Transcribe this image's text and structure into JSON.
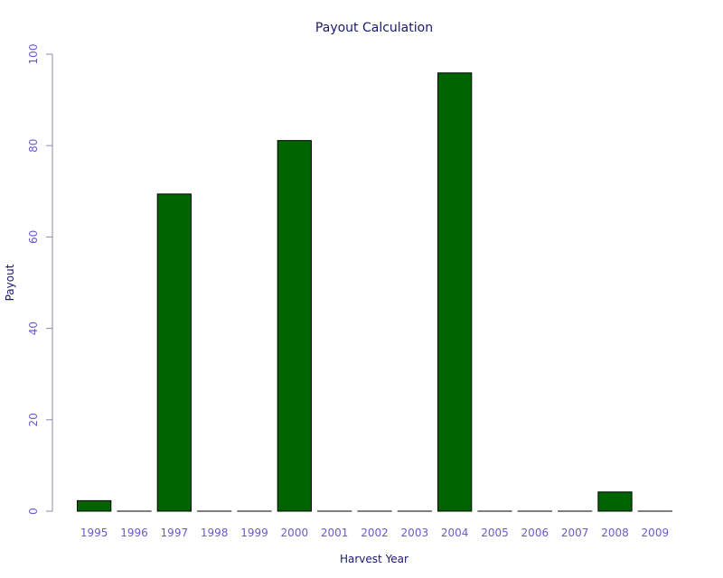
{
  "chart_data": {
    "type": "bar",
    "title": "Payout Calculation",
    "xlabel": "Harvest Year",
    "ylabel": "Payout",
    "categories": [
      "1995",
      "1996",
      "1997",
      "1998",
      "1999",
      "2000",
      "2001",
      "2002",
      "2003",
      "2004",
      "2005",
      "2006",
      "2007",
      "2008",
      "2009"
    ],
    "values": [
      2.3,
      0,
      69.4,
      0,
      0,
      81.1,
      0,
      0,
      0,
      95.9,
      0,
      0,
      0,
      4.2,
      0
    ],
    "ylim": [
      0,
      100
    ],
    "yticks": [
      "0",
      "20",
      "40",
      "60",
      "80",
      "100"
    ],
    "grid": false,
    "legend": "none",
    "colors": {
      "bar_fill": "#006400",
      "bar_stroke": "#000000",
      "title": "#191970",
      "axis_title": "#191970",
      "tick_label": "#6a5acd",
      "axis_line": "#8a8aa8"
    }
  }
}
